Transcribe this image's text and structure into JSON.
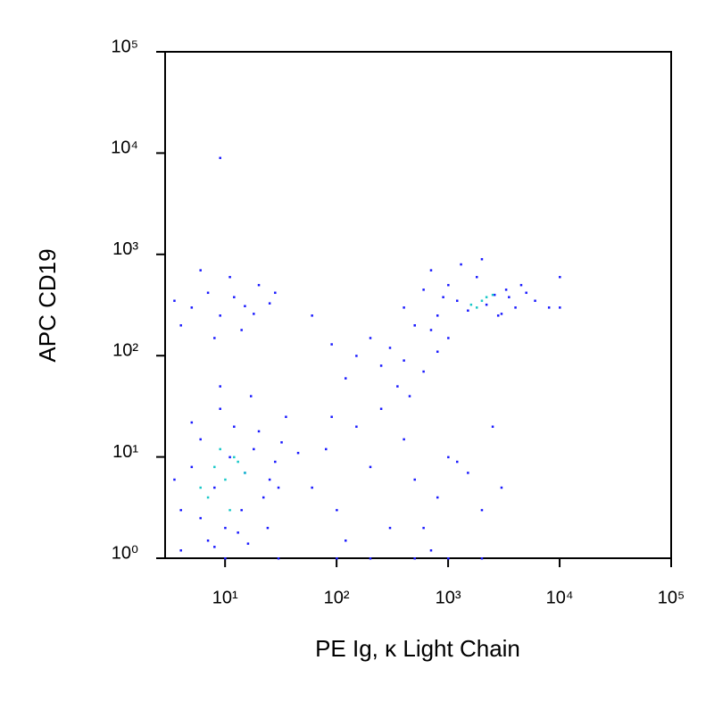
{
  "chart_data": {
    "type": "scatter",
    "xlabel": "PE Ig, κ Light Chain",
    "ylabel": "APC CD19",
    "xscale": "log",
    "yscale": "log",
    "xlim": [
      2.9,
      100000
    ],
    "ylim": [
      1,
      100000
    ],
    "xticks": [
      {
        "value": 10,
        "label": "10¹"
      },
      {
        "value": 100,
        "label": "10²"
      },
      {
        "value": 1000,
        "label": "10³"
      },
      {
        "value": 10000,
        "label": "10⁴"
      },
      {
        "value": 100000,
        "label": "10⁵"
      }
    ],
    "yticks": [
      {
        "value": 1,
        "label": "10⁰"
      },
      {
        "value": 10,
        "label": "10¹"
      },
      {
        "value": 100,
        "label": "10²"
      },
      {
        "value": 1000,
        "label": "10³"
      },
      {
        "value": 10000,
        "label": "10⁴"
      },
      {
        "value": 100000,
        "label": "10⁵"
      }
    ],
    "series": [
      {
        "color": "#1a1aff",
        "x": [
          4,
          5,
          6,
          8,
          10,
          12,
          15,
          18,
          22,
          28,
          35,
          3.5,
          7,
          9,
          11,
          14,
          20,
          25,
          32,
          45,
          4,
          6,
          8,
          13,
          17,
          24,
          30,
          5,
          9,
          16,
          3.5,
          5,
          7,
          9,
          12,
          15,
          20,
          25,
          4,
          8,
          11,
          18,
          6,
          14,
          28,
          400,
          600,
          800,
          1000,
          1200,
          1500,
          1800,
          2200,
          2600,
          3000,
          3500,
          4000,
          5000,
          6000,
          8000,
          10000,
          500,
          700,
          1300,
          2000,
          2800,
          3300,
          4500,
          900,
          10000,
          150,
          200,
          250,
          300,
          400,
          500,
          600,
          800,
          1000,
          120,
          350,
          700,
          60,
          90,
          450,
          60,
          80,
          100,
          150,
          200,
          300,
          400,
          500,
          800,
          1000,
          1500,
          2000,
          2500,
          3000,
          120,
          250,
          600,
          1200,
          700,
          90,
          9,
          10,
          30,
          100,
          200,
          500,
          1000,
          2000
        ],
        "y": [
          3,
          8,
          15,
          5,
          2,
          20,
          7,
          12,
          4,
          9,
          25,
          6,
          1.5,
          30,
          10,
          3,
          18,
          6,
          14,
          11,
          1.2,
          2.5,
          1.3,
          1.8,
          40,
          2,
          5,
          22,
          50,
          1.4,
          350,
          300,
          420,
          250,
          380,
          310,
          500,
          330,
          200,
          150,
          600,
          260,
          700,
          180,
          420,
          300,
          450,
          250,
          500,
          350,
          280,
          600,
          320,
          400,
          260,
          380,
          300,
          420,
          350,
          300,
          600,
          200,
          700,
          800,
          900,
          250,
          450,
          500,
          380,
          300,
          100,
          150,
          80,
          120,
          90,
          200,
          70,
          110,
          150,
          60,
          50,
          180,
          250,
          130,
          40,
          5,
          12,
          3,
          20,
          8,
          2,
          15,
          6,
          4,
          10,
          7,
          3,
          20,
          5,
          1.5,
          30,
          2,
          9,
          1.2,
          25,
          9000,
          1,
          1,
          1,
          1,
          1,
          1,
          1
        ]
      },
      {
        "color": "#19c8c8",
        "x": [
          6,
          8,
          10,
          12,
          15,
          7,
          9,
          11,
          13,
          2000,
          1800,
          2500,
          1600,
          2200
        ],
        "y": [
          5,
          8,
          6,
          10,
          7,
          4,
          12,
          3,
          9,
          350,
          300,
          400,
          320,
          380
        ]
      }
    ]
  }
}
